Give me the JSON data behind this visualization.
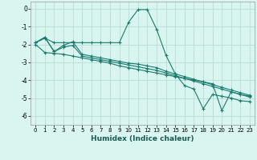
{
  "xlabel": "Humidex (Indice chaleur)",
  "bg_color": "#d8f5f0",
  "grid_color": "#b8ddd8",
  "line_color": "#1a7a6e",
  "xlim": [
    -0.5,
    23.5
  ],
  "ylim": [
    -6.5,
    0.4
  ],
  "yticks": [
    0,
    -1,
    -2,
    -3,
    -4,
    -5,
    -6
  ],
  "xticks": [
    0,
    1,
    2,
    3,
    4,
    5,
    6,
    7,
    8,
    9,
    10,
    11,
    12,
    13,
    14,
    15,
    16,
    17,
    18,
    19,
    20,
    21,
    22,
    23
  ],
  "series1_x": [
    0,
    1,
    2,
    3,
    4,
    5,
    6,
    7,
    8,
    9,
    10,
    11,
    12,
    13,
    14,
    15,
    16,
    17,
    18,
    19,
    20,
    21,
    22,
    23
  ],
  "series1_y": [
    -1.9,
    -1.65,
    -1.9,
    -1.9,
    -1.9,
    -1.9,
    -1.9,
    -1.9,
    -1.9,
    -1.9,
    -0.75,
    -0.05,
    -0.05,
    -1.15,
    -2.6,
    -3.65,
    -4.3,
    -4.5,
    -5.6,
    -4.8,
    -4.9,
    -5.0,
    -5.15,
    -5.2
  ],
  "series2_x": [
    0,
    1,
    2,
    3,
    4,
    5,
    6,
    7,
    8,
    9,
    10,
    11,
    12,
    13,
    14,
    15,
    16,
    17,
    18,
    19,
    20,
    21,
    22,
    23
  ],
  "series2_y": [
    -1.9,
    -1.6,
    -2.4,
    -2.05,
    -1.85,
    -2.55,
    -2.65,
    -2.75,
    -2.85,
    -2.95,
    -3.05,
    -3.1,
    -3.2,
    -3.3,
    -3.5,
    -3.65,
    -3.8,
    -3.95,
    -4.1,
    -4.25,
    -4.4,
    -4.55,
    -4.7,
    -4.85
  ],
  "series3_x": [
    0,
    1,
    2,
    3,
    4,
    5,
    6,
    7,
    8,
    9,
    10,
    11,
    12,
    13,
    14,
    15,
    16,
    17,
    18,
    19,
    20,
    21,
    22,
    23
  ],
  "series3_y": [
    -1.9,
    -1.6,
    -2.4,
    -2.15,
    -2.05,
    -2.65,
    -2.75,
    -2.85,
    -2.95,
    -3.05,
    -3.15,
    -3.25,
    -3.35,
    -3.45,
    -3.6,
    -3.75,
    -3.9,
    -4.05,
    -4.2,
    -4.35,
    -4.5,
    -4.65,
    -4.8,
    -4.95
  ],
  "series4_x": [
    0,
    1,
    2,
    3,
    4,
    5,
    6,
    7,
    8,
    9,
    10,
    11,
    12,
    13,
    14,
    15,
    16,
    17,
    18,
    19,
    20,
    21,
    22,
    23
  ],
  "series4_y": [
    -2.0,
    -2.45,
    -2.5,
    -2.55,
    -2.65,
    -2.75,
    -2.85,
    -2.95,
    -3.05,
    -3.2,
    -3.3,
    -3.4,
    -3.5,
    -3.6,
    -3.7,
    -3.8,
    -3.9,
    -4.0,
    -4.1,
    -4.2,
    -5.7,
    -4.65,
    -4.8,
    -4.9
  ]
}
